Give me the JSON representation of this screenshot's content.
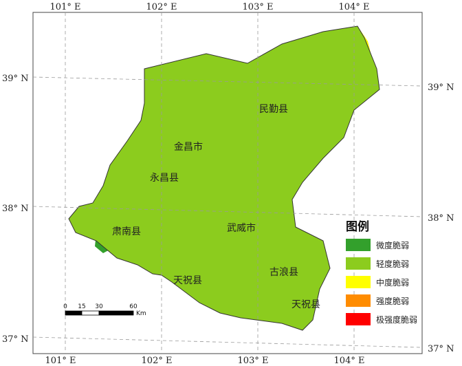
{
  "map": {
    "x_ticks": [
      "101° E",
      "102° E",
      "103° E",
      "104° E"
    ],
    "y_ticks": [
      "39° N",
      "38° N",
      "37° N"
    ],
    "counties": [
      "民勤县",
      "金昌市",
      "永昌县",
      "肃南县",
      "武威市",
      "古浪县",
      "天祝县",
      "天祝县"
    ],
    "colors": {
      "very_strong": "#ff0000",
      "strong": "#ff8c00",
      "moderate": "#ffff00",
      "mild": "#8ccc1e",
      "slight": "#33a02c"
    }
  },
  "legend": {
    "title": "图例",
    "items": [
      {
        "label": "微度脆弱",
        "color": "#33a02c"
      },
      {
        "label": "轻度脆弱",
        "color": "#8ccc1e"
      },
      {
        "label": "中度脆弱",
        "color": "#ffff00"
      },
      {
        "label": "强度脆弱",
        "color": "#ff8c00"
      },
      {
        "label": "极强度脆弱",
        "color": "#ff0000"
      }
    ]
  },
  "scale_bar": {
    "ticks": [
      "0",
      "15",
      "30",
      "60"
    ],
    "unit": "Km"
  }
}
